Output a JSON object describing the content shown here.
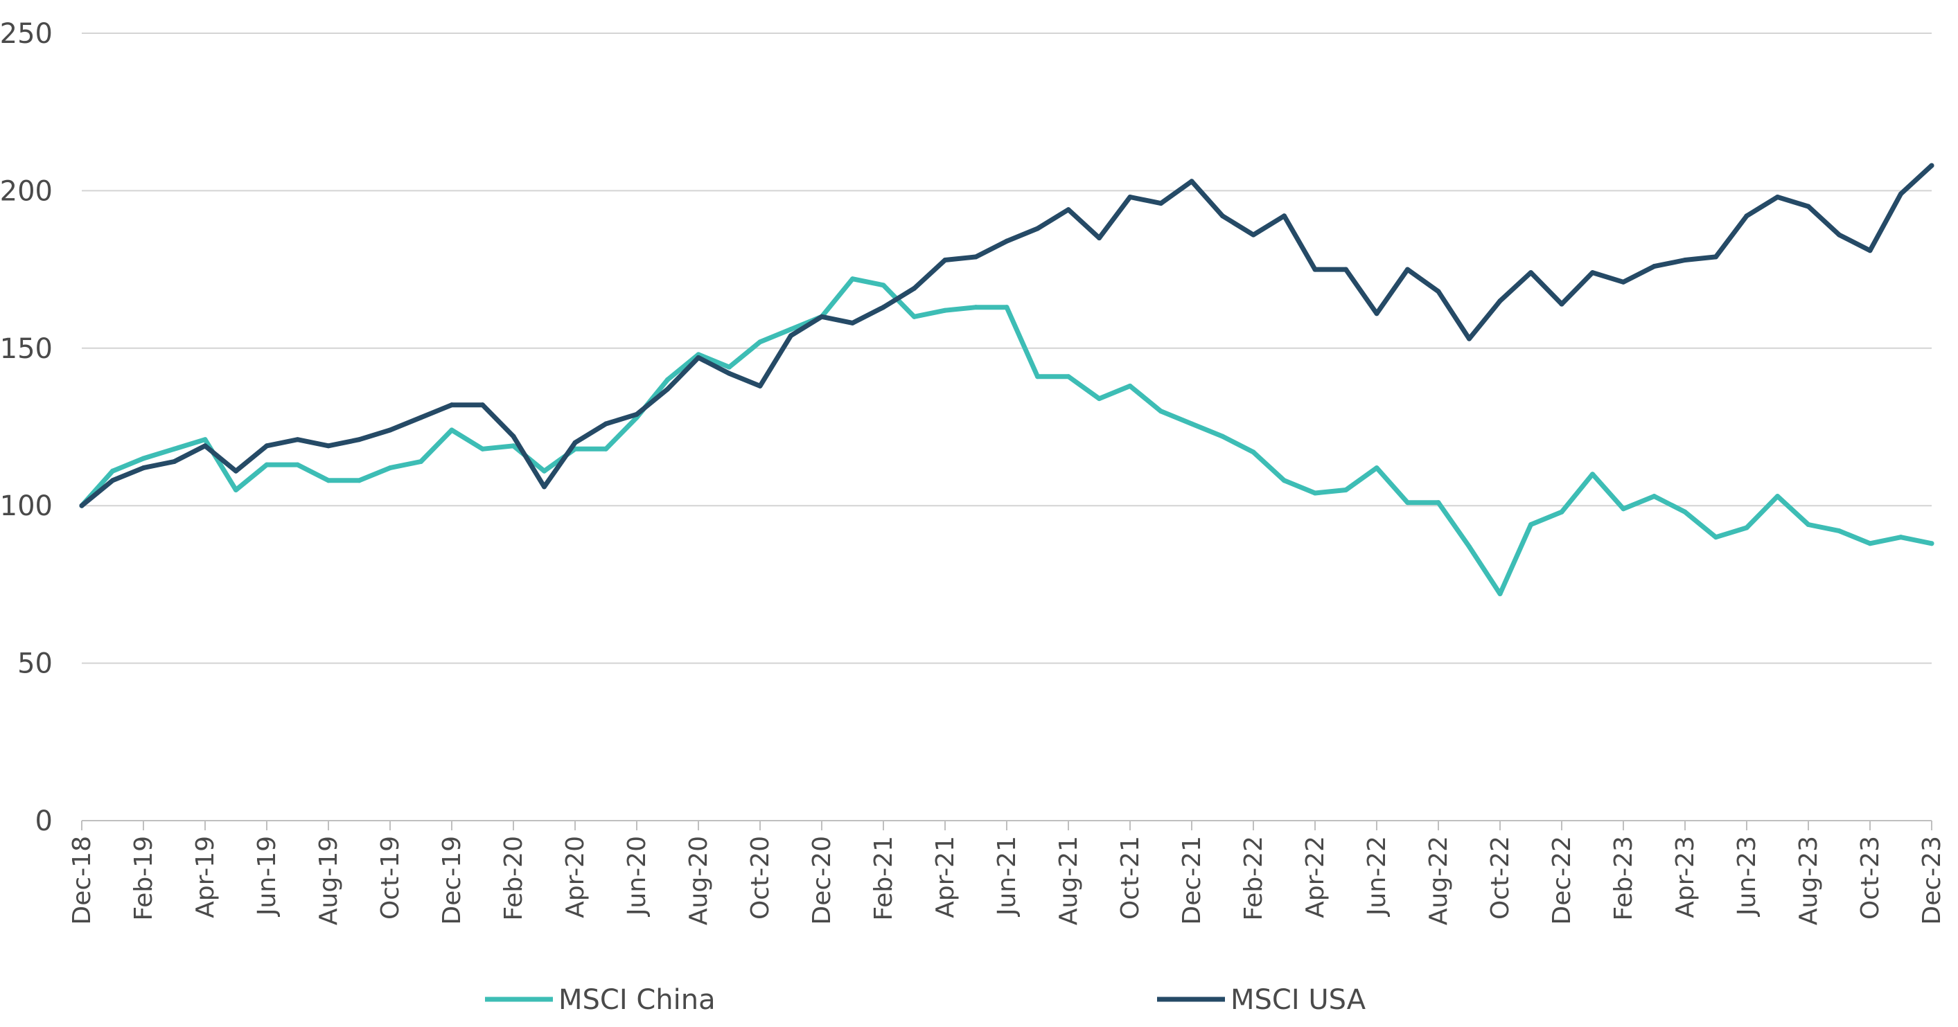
{
  "chart_data": {
    "type": "line",
    "title": "",
    "xlabel": "",
    "ylabel": "",
    "ylim": [
      0,
      250
    ],
    "yticks": [
      "0",
      "50",
      "100",
      "150",
      "200",
      "250"
    ],
    "grid": "horizontal",
    "legend_position": "bottom",
    "x": [
      "Dec-18",
      "Jan-19",
      "Feb-19",
      "Mar-19",
      "Apr-19",
      "May-19",
      "Jun-19",
      "Jul-19",
      "Aug-19",
      "Sep-19",
      "Oct-19",
      "Nov-19",
      "Dec-19",
      "Jan-20",
      "Feb-20",
      "Mar-20",
      "Apr-20",
      "May-20",
      "Jun-20",
      "Jul-20",
      "Aug-20",
      "Sep-20",
      "Oct-20",
      "Nov-20",
      "Dec-20",
      "Jan-21",
      "Feb-21",
      "Mar-21",
      "Apr-21",
      "May-21",
      "Jun-21",
      "Jul-21",
      "Aug-21",
      "Sep-21",
      "Oct-21",
      "Nov-21",
      "Dec-21",
      "Jan-22",
      "Feb-22",
      "Mar-22",
      "Apr-22",
      "May-22",
      "Jun-22",
      "Jul-22",
      "Aug-22",
      "Sep-22",
      "Oct-22",
      "Nov-22",
      "Dec-22",
      "Jan-23",
      "Feb-23",
      "Mar-23",
      "Apr-23",
      "May-23",
      "Jun-23",
      "Jul-23",
      "Aug-23",
      "Sep-23",
      "Oct-23",
      "Nov-23",
      "Dec-23"
    ],
    "xtick_labels": [
      "Dec-18",
      "Feb-19",
      "Apr-19",
      "Jun-19",
      "Aug-19",
      "Oct-19",
      "Dec-19",
      "Feb-20",
      "Apr-20",
      "Jun-20",
      "Aug-20",
      "Oct-20",
      "Dec-20",
      "Feb-21",
      "Apr-21",
      "Jun-21",
      "Aug-21",
      "Oct-21",
      "Dec-21",
      "Feb-22",
      "Apr-22",
      "Jun-22",
      "Aug-22",
      "Oct-22",
      "Dec-22",
      "Feb-23",
      "Apr-23",
      "Jun-23",
      "Aug-23",
      "Oct-23",
      "Dec-23"
    ],
    "series": [
      {
        "name": "MSCI China",
        "color": "#3dbdb5",
        "values": [
          100,
          111,
          115,
          118,
          121,
          105,
          113,
          113,
          108,
          108,
          112,
          114,
          124,
          118,
          119,
          111,
          118,
          118,
          128,
          140,
          148,
          144,
          152,
          156,
          160,
          172,
          170,
          160,
          162,
          163,
          163,
          141,
          141,
          134,
          138,
          130,
          126,
          122,
          117,
          108,
          104,
          105,
          112,
          101,
          101,
          87,
          72,
          94,
          98,
          110,
          99,
          103,
          98,
          90,
          93,
          103,
          94,
          92,
          88,
          90,
          88
        ]
      },
      {
        "name": "MSCI USA",
        "color": "#254a66",
        "values": [
          100,
          108,
          112,
          114,
          119,
          111,
          119,
          121,
          119,
          121,
          124,
          128,
          132,
          132,
          122,
          106,
          120,
          126,
          129,
          137,
          147,
          142,
          138,
          154,
          160,
          158,
          163,
          169,
          178,
          179,
          184,
          188,
          194,
          185,
          198,
          196,
          203,
          192,
          186,
          192,
          175,
          175,
          161,
          175,
          168,
          153,
          165,
          174,
          164,
          174,
          171,
          176,
          178,
          179,
          192,
          198,
          195,
          186,
          181,
          199,
          208
        ]
      }
    ]
  }
}
